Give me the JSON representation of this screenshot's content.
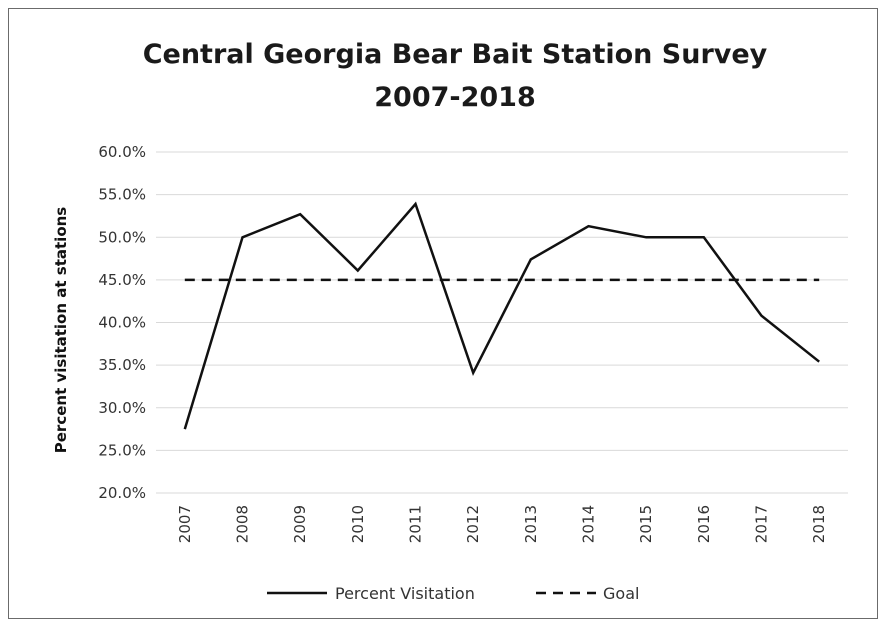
{
  "chart_data": {
    "type": "line",
    "title": "Central Georgia Bear Bait Station Survey",
    "subtitle": "2007-2018",
    "xlabel": "",
    "ylabel": "Percent visitation  at stations",
    "categories": [
      "2007",
      "2008",
      "2009",
      "2010",
      "2011",
      "2012",
      "2013",
      "2014",
      "2015",
      "2016",
      "2017",
      "2018"
    ],
    "ylim": [
      20,
      60
    ],
    "yticks": [
      20,
      25,
      30,
      35,
      40,
      45,
      50,
      55,
      60
    ],
    "ytick_labels": [
      "20.0%",
      "25.0%",
      "30.0%",
      "35.0%",
      "40.0%",
      "45.0%",
      "50.0%",
      "55.0%",
      "60.0%"
    ],
    "grid": true,
    "legend_position": "bottom",
    "series": [
      {
        "name": "Percent Visitation",
        "style": "solid",
        "color": "#111111",
        "values": [
          27.5,
          50.0,
          52.7,
          46.1,
          53.9,
          34.1,
          47.4,
          51.3,
          50.0,
          50.0,
          40.8,
          35.4
        ]
      },
      {
        "name": "Goal",
        "style": "dashed",
        "color": "#111111",
        "values": [
          45,
          45,
          45,
          45,
          45,
          45,
          45,
          45,
          45,
          45,
          45,
          45
        ]
      }
    ]
  }
}
